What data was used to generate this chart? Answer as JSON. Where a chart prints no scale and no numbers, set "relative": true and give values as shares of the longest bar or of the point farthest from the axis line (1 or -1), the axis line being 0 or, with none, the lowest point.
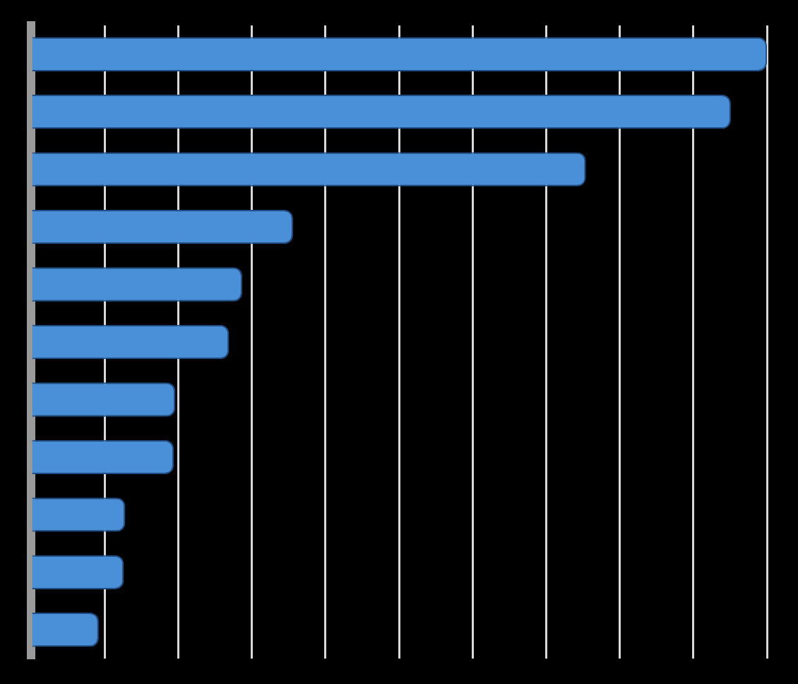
{
  "chart_data": {
    "type": "bar",
    "orientation": "horizontal",
    "relative": true,
    "grid": "x",
    "legend": false,
    "categories": [
      null,
      null,
      null,
      null,
      null,
      null,
      null,
      null,
      null,
      null,
      null
    ],
    "series": [
      {
        "color": "#4a90d9",
        "values": [
          1,
          0.951,
          0.754,
          0.356,
          0.287,
          0.269,
          0.196,
          0.194,
          0.128,
          0.126,
          0.092
        ]
      }
    ]
  }
}
